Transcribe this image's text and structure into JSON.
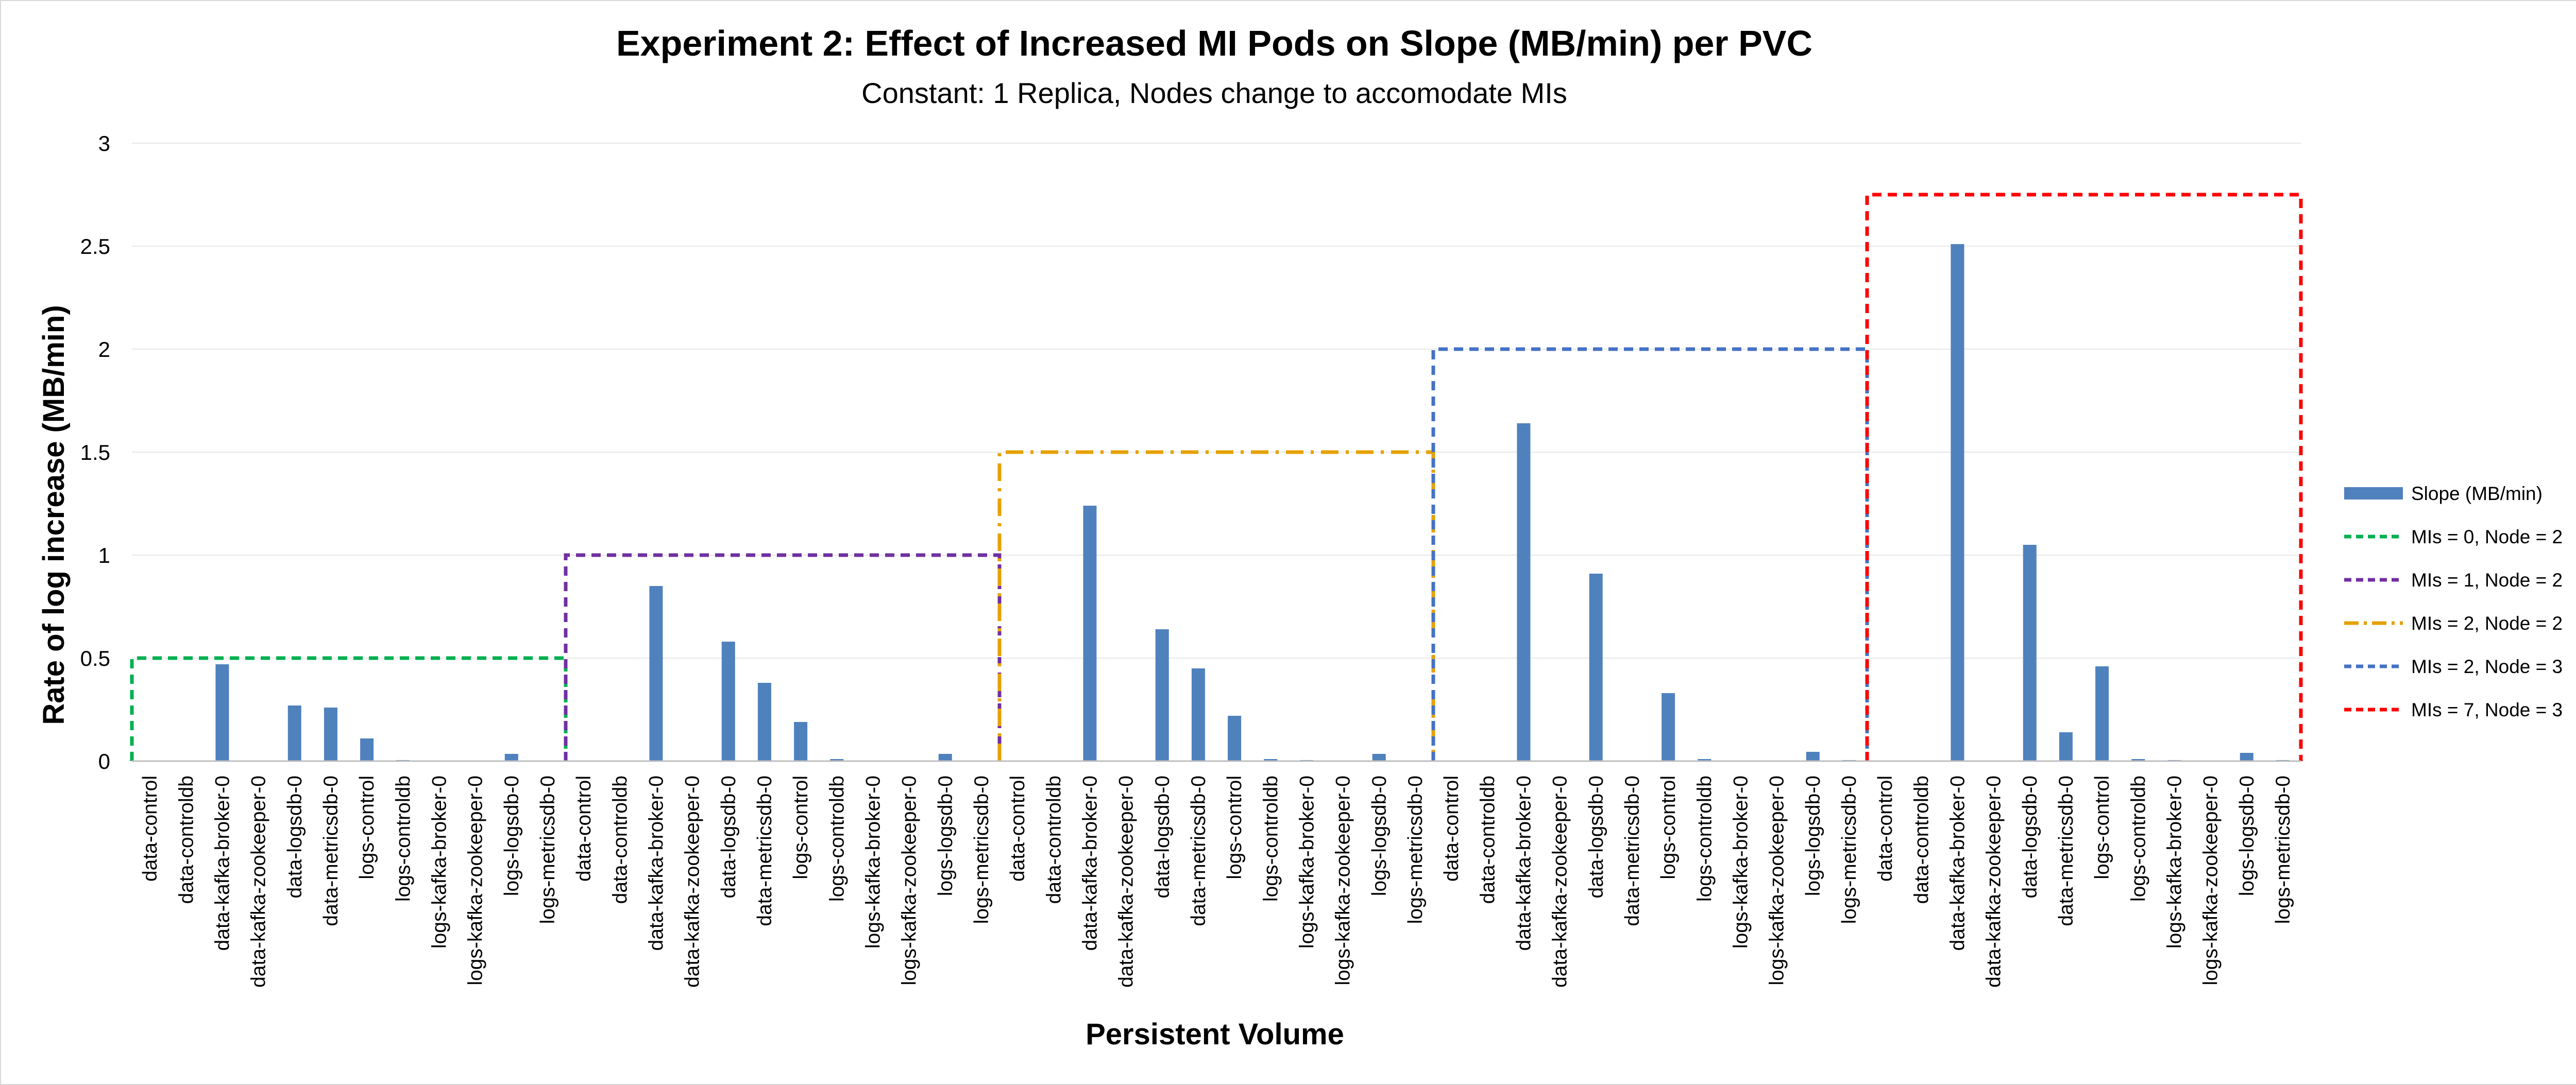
{
  "chart_data": {
    "type": "bar",
    "title": "Experiment 2: Effect of Increased MI Pods on Slope (MB/min) per PVC",
    "subtitle": "Constant: 1 Replica, Nodes change to accomodate MIs",
    "xlabel": "Persistent Volume",
    "ylabel": "Rate of log increase (MB/min)",
    "ylim": [
      0,
      3
    ],
    "yticks": [
      "0",
      "0.5",
      "1",
      "1.5",
      "2",
      "2.5",
      "3"
    ],
    "grid": true,
    "legend_position": "right",
    "categories": [
      "data-control",
      "data-controldb",
      "data-kafka-broker-0",
      "data-kafka-zookeeper-0",
      "data-logsdb-0",
      "data-metricsdb-0",
      "logs-control",
      "logs-controldb",
      "logs-kafka-broker-0",
      "logs-kafka-zookeeper-0",
      "logs-logsdb-0",
      "logs-metricsdb-0",
      "data-control",
      "data-controldb",
      "data-kafka-broker-0",
      "data-kafka-zookeeper-0",
      "data-logsdb-0",
      "data-metricsdb-0",
      "logs-control",
      "logs-controldb",
      "logs-kafka-broker-0",
      "logs-kafka-zookeeper-0",
      "logs-logsdb-0",
      "logs-metricsdb-0",
      "data-control",
      "data-controldb",
      "data-kafka-broker-0",
      "data-kafka-zookeeper-0",
      "data-logsdb-0",
      "data-metricsdb-0",
      "logs-control",
      "logs-controldb",
      "logs-kafka-broker-0",
      "logs-kafka-zookeeper-0",
      "logs-logsdb-0",
      "logs-metricsdb-0",
      "data-control",
      "data-controldb",
      "data-kafka-broker-0",
      "data-kafka-zookeeper-0",
      "data-logsdb-0",
      "data-metricsdb-0",
      "logs-control",
      "logs-controldb",
      "logs-kafka-broker-0",
      "logs-kafka-zookeeper-0",
      "logs-logsdb-0",
      "logs-metricsdb-0",
      "data-control",
      "data-controldb",
      "data-kafka-broker-0",
      "data-kafka-zookeeper-0",
      "data-logsdb-0",
      "data-metricsdb-0",
      "logs-control",
      "logs-controldb",
      "logs-kafka-broker-0",
      "logs-kafka-zookeeper-0",
      "logs-logsdb-0",
      "logs-metricsdb-0"
    ],
    "series": [
      {
        "name": "Slope (MB/min)",
        "color": "#4f81bd",
        "values": [
          0,
          0,
          0.47,
          0,
          0.27,
          0.26,
          0.11,
          0.005,
          0,
          0,
          0.035,
          0,
          0,
          0,
          0.85,
          0,
          0.58,
          0.38,
          0.19,
          0.01,
          0,
          0,
          0.035,
          0,
          0,
          0,
          1.24,
          0,
          0.64,
          0.45,
          0.22,
          0.01,
          0.005,
          0,
          0.035,
          0,
          0,
          0,
          1.64,
          0,
          0.91,
          0,
          0.33,
          0.01,
          0,
          0,
          0.045,
          0.005,
          0,
          0,
          2.51,
          0,
          1.05,
          0.14,
          0.46,
          0.01,
          0.005,
          0,
          0.04,
          0.005
        ]
      }
    ],
    "groups": [
      {
        "name": "MIs = 0, Node = 2",
        "color": "#00b050",
        "dash": "dash",
        "start": 0,
        "end": 12,
        "level": 0.5
      },
      {
        "name": "MIs = 1, Node = 2",
        "color": "#7030a0",
        "dash": "dash",
        "start": 12,
        "end": 24,
        "level": 1.0
      },
      {
        "name": "MIs = 2, Node = 2",
        "color": "#e6a100",
        "dash": "dashdot",
        "start": 24,
        "end": 36,
        "level": 1.5
      },
      {
        "name": "MIs = 2, Node = 3",
        "color": "#4472c4",
        "dash": "dash",
        "start": 36,
        "end": 48,
        "level": 2.0
      },
      {
        "name": "MIs = 7, Node = 3",
        "color": "#ff0000",
        "dash": "dash",
        "start": 48,
        "end": 60,
        "level": 2.75
      }
    ]
  }
}
